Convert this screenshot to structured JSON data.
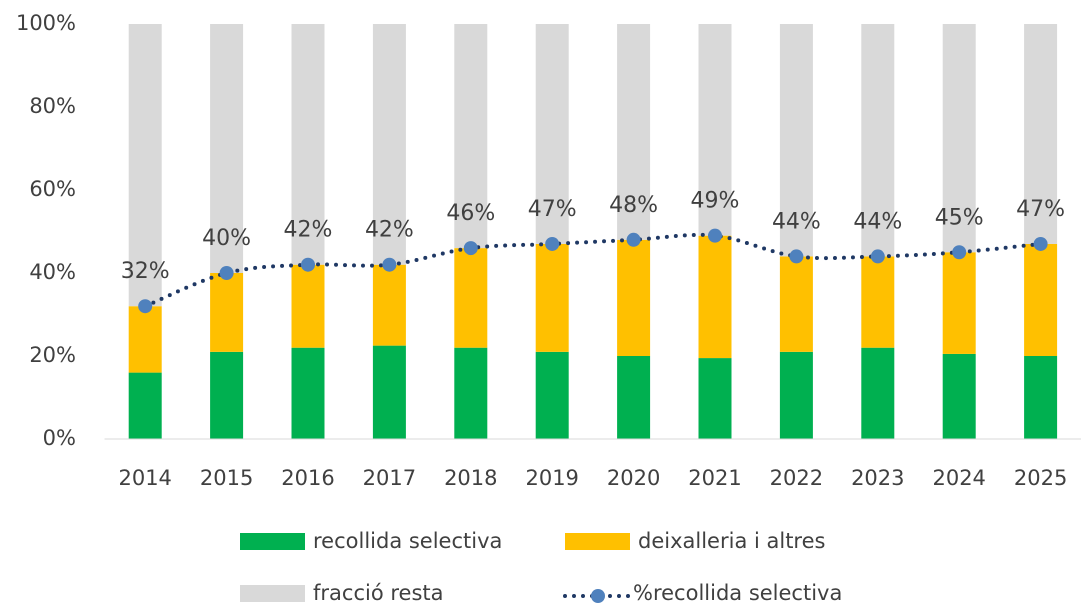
{
  "chart_data": {
    "type": "bar",
    "categories": [
      "2014",
      "2015",
      "2016",
      "2017",
      "2018",
      "2019",
      "2020",
      "2021",
      "2022",
      "2023",
      "2024",
      "2025"
    ],
    "stacked": true,
    "series": [
      {
        "name": "recollida selectiva",
        "color": "#00b050",
        "values": [
          16,
          21,
          22,
          22.5,
          22,
          21,
          20,
          19.5,
          21,
          22,
          20.5,
          20
        ]
      },
      {
        "name": "deixalleria i altres",
        "color": "#ffc000",
        "values": [
          16,
          19,
          20,
          19.5,
          24,
          26,
          28,
          29.5,
          23,
          22,
          24.5,
          27
        ]
      },
      {
        "name": "fracció resta",
        "color": "#d9d9d9",
        "values": [
          68,
          60,
          58,
          58,
          54,
          53,
          52,
          51,
          56,
          56,
          55,
          53
        ]
      },
      {
        "name": "%recollida selectiva",
        "type": "line",
        "color": "#1f3864",
        "marker_color": "#4f81bd",
        "values": [
          32,
          40,
          42,
          42,
          46,
          47,
          48,
          49,
          44,
          44,
          45,
          47
        ],
        "value_labels": [
          "32%",
          "40%",
          "42%",
          "42%",
          "46%",
          "47%",
          "48%",
          "49%",
          "44%",
          "44%",
          "45%",
          "47%"
        ]
      }
    ],
    "ylim": [
      0,
      100
    ],
    "yticks": [
      {
        "value": 0,
        "label": "0%"
      },
      {
        "value": 20,
        "label": "20%"
      },
      {
        "value": 40,
        "label": "40%"
      },
      {
        "value": 60,
        "label": "60%"
      },
      {
        "value": 80,
        "label": "80%"
      },
      {
        "value": 100,
        "label": "100%"
      }
    ],
    "grid": false,
    "legend": "bottom"
  }
}
